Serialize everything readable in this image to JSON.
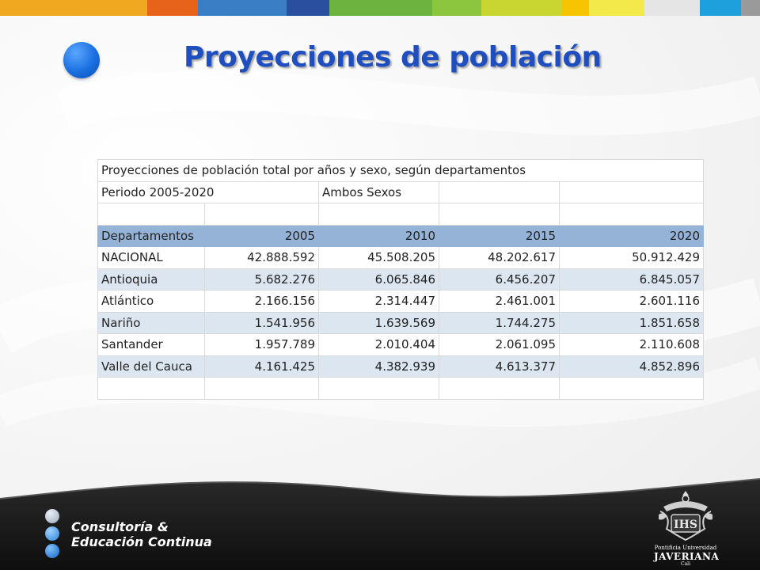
{
  "header": {
    "title": "Proyecciones de población",
    "colors": [
      "#f0a820",
      "#e8631a",
      "#3a7ec6",
      "#2a4f9f",
      "#6cb33f",
      "#8cc63e",
      "#c9d631",
      "#f6c400",
      "#f4e94a",
      "#e5e5e5",
      "#1ea0dc",
      "#9a9a9a"
    ]
  },
  "table": {
    "caption": "Proyecciones de población total por años y sexo, según departamentos",
    "period": "Periodo 2005-2020",
    "sex": "Ambos Sexos",
    "columns": [
      "Departamentos",
      "2005",
      "2010",
      "2015",
      "2020"
    ],
    "rows": [
      {
        "name": "NACIONAL",
        "values": [
          "42.888.592",
          "45.508.205",
          "48.202.617",
          "50.912.429"
        ]
      },
      {
        "name": "Antioquia",
        "values": [
          "5.682.276",
          "6.065.846",
          "6.456.207",
          "6.845.057"
        ]
      },
      {
        "name": "Atlántico",
        "values": [
          "2.166.156",
          "2.314.447",
          "2.461.001",
          "2.601.116"
        ]
      },
      {
        "name": "Nariño",
        "values": [
          "1.541.956",
          "1.639.569",
          "1.744.275",
          "1.851.658"
        ]
      },
      {
        "name": "Santander",
        "values": [
          "1.957.789",
          "2.010.404",
          "2.061.095",
          "2.110.608"
        ]
      },
      {
        "name": "Valle del Cauca",
        "values": [
          "4.161.425",
          "4.382.939",
          "4.613.377",
          "4.852.896"
        ]
      }
    ]
  },
  "footer": {
    "brand_line1": "Consultoría &",
    "brand_line2": "Educación Continua",
    "crest_initials": "IHS",
    "university_line1": "Pontificia Universidad",
    "university_line2": "JAVERIANA",
    "university_line3": "Cali"
  }
}
